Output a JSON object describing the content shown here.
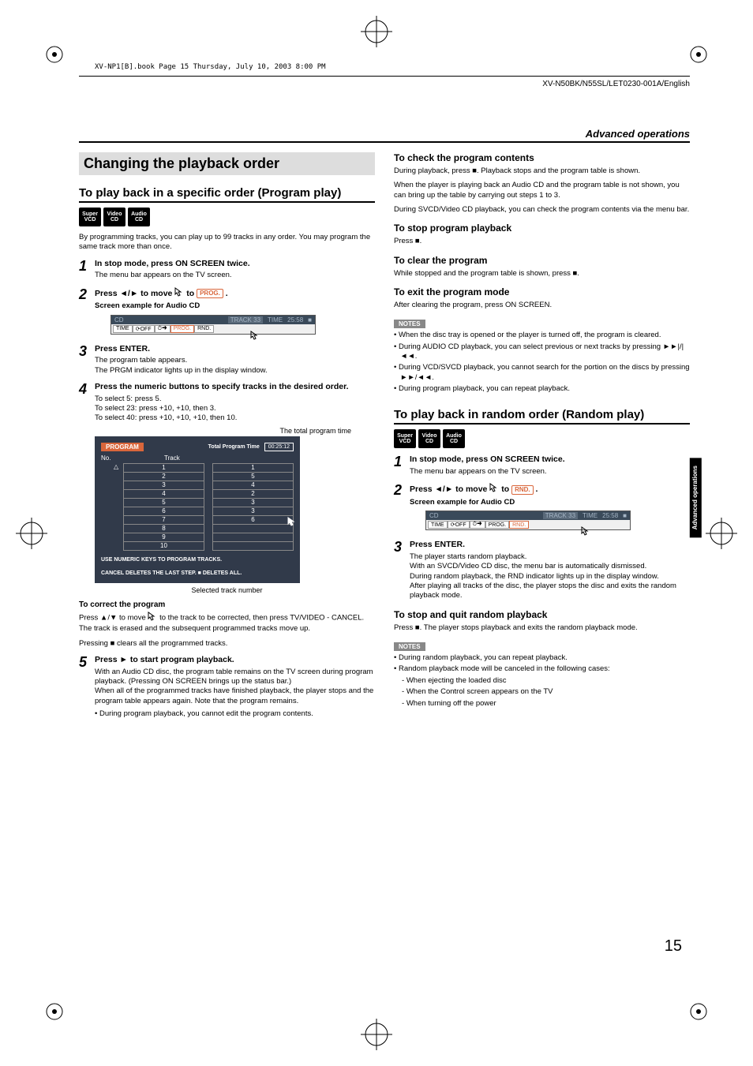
{
  "book_ref": "XV-NP1[B].book  Page 15  Thursday, July 10, 2003  8:00 PM",
  "doc_code": "XV-N50BK/N55SL/LET0230-001A/English",
  "section_header": "Advanced operations",
  "page_number": "15",
  "side_tab": "Advanced operations",
  "colors": {
    "accent": "#d9663b",
    "menubar_bg": "#3a4a5a",
    "panel_bg": "#313a4a",
    "notes_bg": "#888888"
  },
  "left": {
    "main_title": "Changing the playback order",
    "prog_title": "To play back in a specific order (Program play)",
    "badges": [
      "Super VCD",
      "Video CD",
      "Audio CD"
    ],
    "intro": "By programming tracks, you can play up to 99 tracks in any order. You may program the same track more than once.",
    "s1_title": "In stop mode, press ON SCREEN twice.",
    "s1_sub": "The menu bar appears on the TV screen.",
    "s2_title_a": "Press ◄/► to move ",
    "s2_title_b": " to ",
    "s2_tag": "PROG.",
    "screen_caption": "Screen example for Audio CD",
    "menubar": {
      "cd": "CD",
      "track": "TRACK 33",
      "time_lbl": "TIME",
      "time_val": "25:58",
      "btns": [
        "TIME",
        "⟳OFF",
        "⏱➜",
        "PROG.",
        "RND."
      ],
      "highlight_index": 3
    },
    "s3_title": "Press ENTER.",
    "s3_sub1": "The program table appears.",
    "s3_sub2": "The PRGM indicator lights up in the display window.",
    "s4_title": "Press the numeric buttons to specify tracks in the desired order.",
    "s4_sub1": "To select 5: press 5.",
    "s4_sub2": "To select 23: press +10, +10, then 3.",
    "s4_sub3": "To select 40: press +10, +10, +10, then 10.",
    "leader_top": "The total program time",
    "program": {
      "head": "PROGRAM",
      "total_lbl": "Total Program Time",
      "total_val": "00:25:12",
      "col_no": "No.",
      "col_track": "Track",
      "nos": [
        "1",
        "2",
        "3",
        "4",
        "5",
        "6",
        "7",
        "8",
        "9",
        "10"
      ],
      "tracks": [
        "1",
        "5",
        "4",
        "2",
        "3",
        "3",
        "6",
        "",
        "",
        ""
      ],
      "footer1": "USE NUMERIC KEYS  TO PROGRAM TRACKS.",
      "footer2": "CANCEL DELETES THE LAST STEP. ■ DELETES ALL."
    },
    "leader_bottom": "Selected track number",
    "correct_h": "To correct the program",
    "correct_p1a": "Press ▲/▼ to move ",
    "correct_p1b": " to the track to be corrected, then press TV/VIDEO - CANCEL. The track is erased and the subsequent programmed tracks move up.",
    "correct_p2": "Pressing ■ clears all the programmed tracks.",
    "s5_title": "Press ► to start program playback.",
    "s5_p1": "With an Audio CD disc, the program table remains on the TV screen during program playback. (Pressing ON SCREEN brings up the status bar.)",
    "s5_p2": "When all of the programmed tracks have finished playback, the player stops and the program table appears again. Note that the program remains.",
    "s5_note": "During program playback, you cannot edit the program contents."
  },
  "right": {
    "check_h": "To check the program contents",
    "check_p1": "During playback, press ■. Playback stops and the program table is shown.",
    "check_p2": "When the player is playing back an Audio CD and the program table is not shown, you can bring up the table by carrying out steps 1 to 3.",
    "check_p3": "During SVCD/Video CD playback, you can check the program contents via the menu bar.",
    "stop_h": "To stop program playback",
    "stop_p": "Press ■.",
    "clear_h": "To clear the program",
    "clear_p": "While stopped and the program table is shown, press ■.",
    "exit_h": "To exit the program mode",
    "exit_p": "After clearing the program, press ON SCREEN.",
    "notes1": [
      "When the disc tray is opened or the player is turned off, the program is cleared.",
      "During AUDIO CD playback, you can select previous or next tracks by pressing ►►|/|◄◄.",
      "During VCD/SVCD playback, you cannot search for the portion on the discs by pressing ►►/◄◄.",
      "During program playback, you can repeat playback."
    ],
    "random_title": "To play back in random order (Random play)",
    "r_s1_title": "In stop mode, press ON SCREEN twice.",
    "r_s1_sub": "The menu bar appears on the TV screen.",
    "r_s2_title_a": "Press ◄/► to move ",
    "r_s2_title_b": " to ",
    "r_s2_tag": "RND.",
    "r_screen_caption": "Screen example for Audio CD",
    "r_menubar": {
      "cd": "CD",
      "track": "TRACK 33",
      "time_lbl": "TIME",
      "time_val": "25:58",
      "btns": [
        "TIME",
        "⟳OFF",
        "⏱➜",
        "PROG.",
        "RND."
      ],
      "highlight_index": 4
    },
    "r_s3_title": "Press ENTER.",
    "r_s3_p1": "The player starts random playback.",
    "r_s3_p2": "With an SVCD/Video CD disc, the menu bar is automatically dismissed.",
    "r_s3_p3": "During random playback, the RND indicator lights up in the display window.",
    "r_s3_p4": "After playing all tracks of the disc, the player stops the disc and exits the random playback mode.",
    "r_stop_h": "To stop and quit random playback",
    "r_stop_p": "Press ■. The player stops playback and exits the random playback mode.",
    "notes2_head": [
      "During random playback, you can repeat playback.",
      "Random playback mode will be canceled in the following cases:"
    ],
    "notes2_sub": [
      "When ejecting the loaded disc",
      "When the Control screen appears on the TV",
      "When turning off the power"
    ]
  }
}
